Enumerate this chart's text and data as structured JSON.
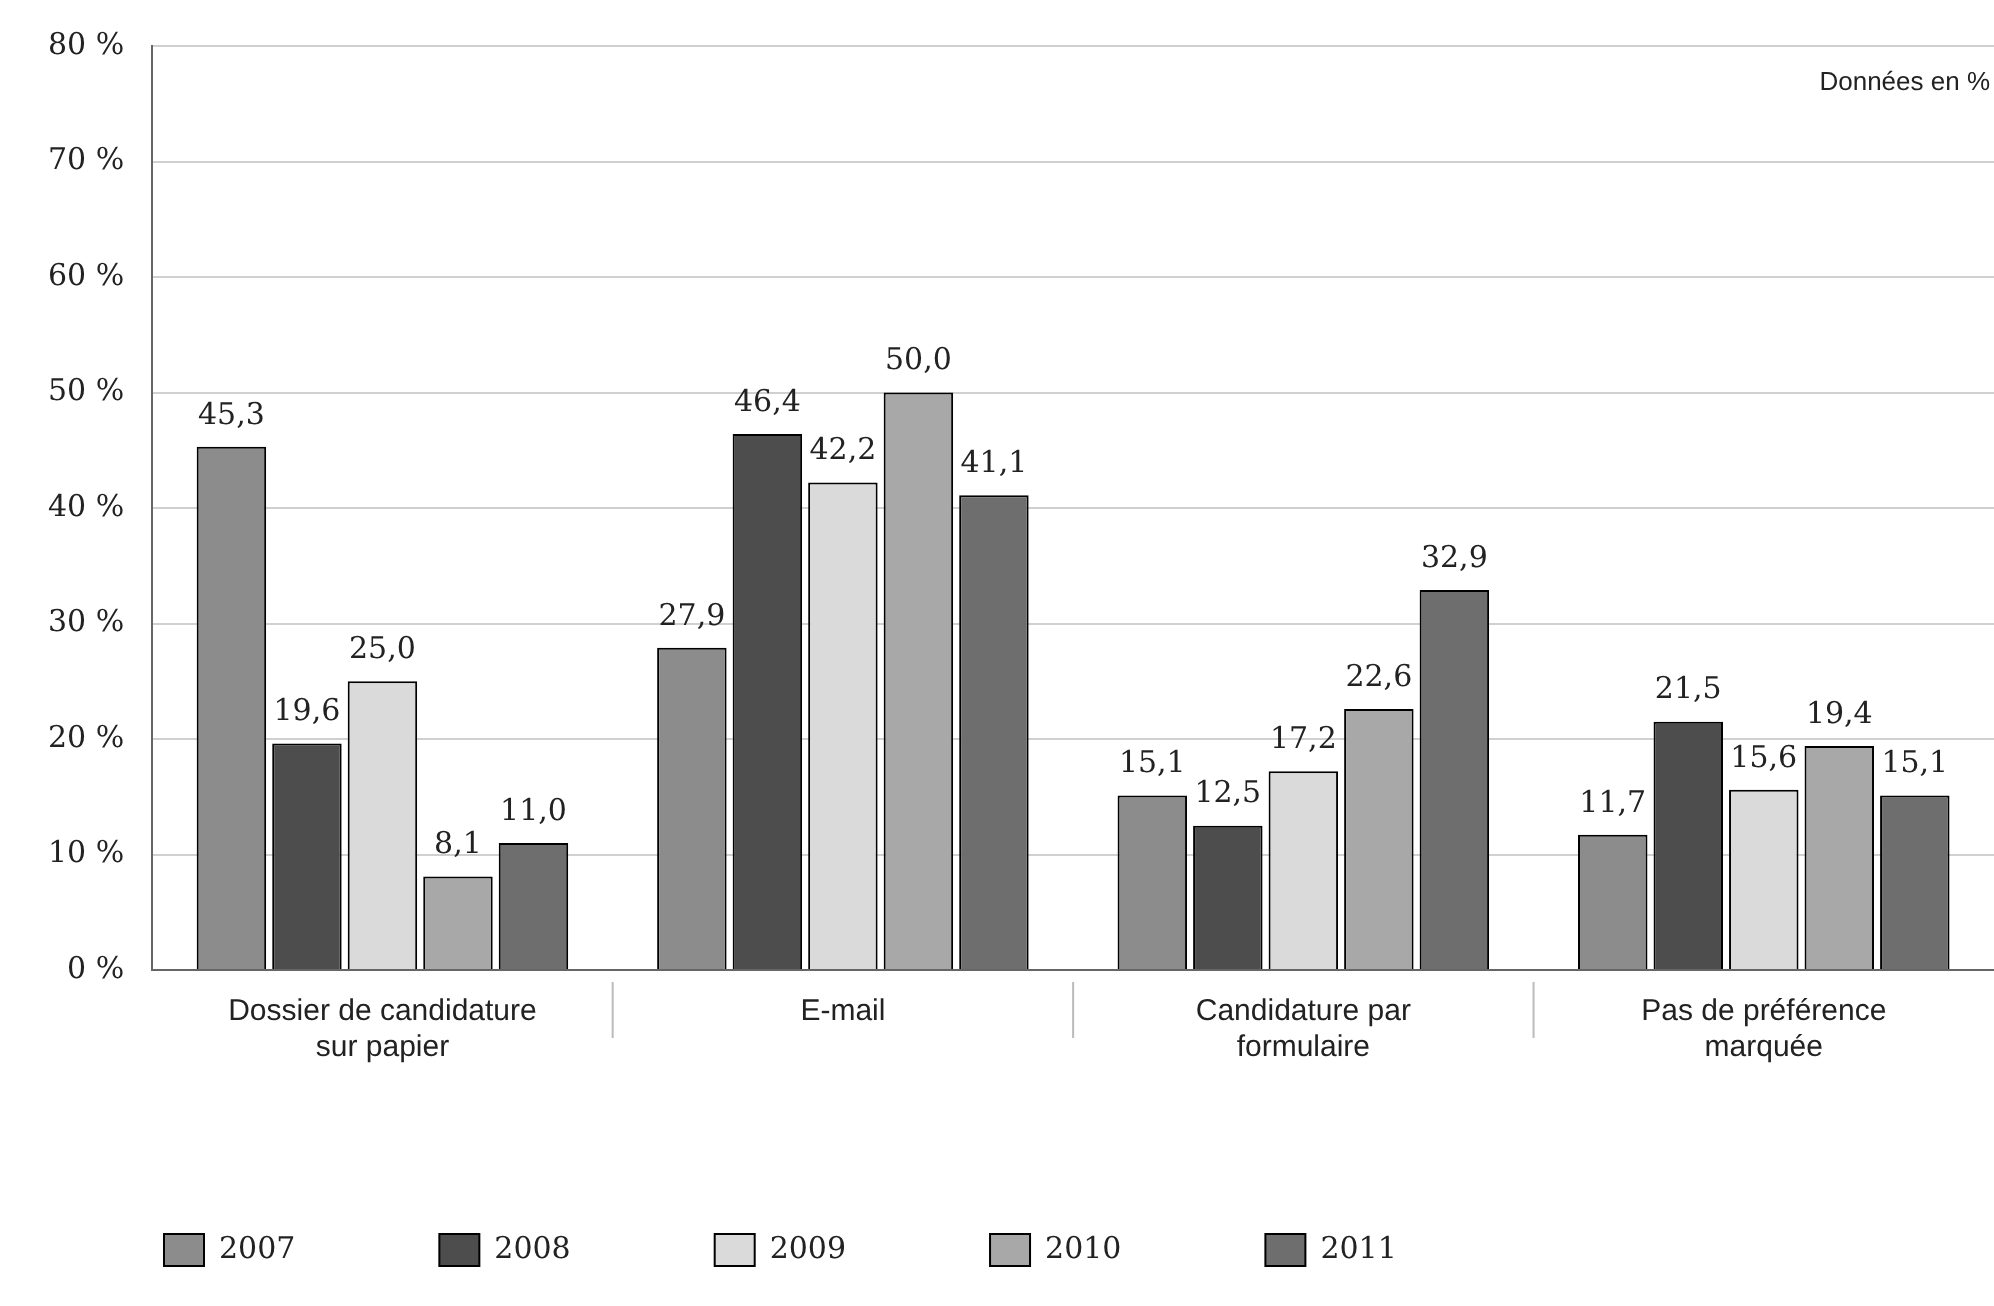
{
  "chart_data": {
    "type": "bar",
    "categories": [
      "Dossier de candidature sur papier",
      "E-mail",
      "Candidature par formulaire",
      "Pas de préférence marquée"
    ],
    "series": [
      {
        "name": "2007",
        "color": "#8c8c8c",
        "values": [
          45.3,
          27.9,
          15.1,
          11.7
        ],
        "value_labels": [
          "45,3",
          "27,9",
          "15,1",
          "11,7"
        ]
      },
      {
        "name": "2008",
        "color": "#4d4d4d",
        "values": [
          19.6,
          46.4,
          12.5,
          21.5
        ],
        "value_labels": [
          "19,6",
          "46,4",
          "12,5",
          "21,5"
        ]
      },
      {
        "name": "2009",
        "color": "#dadada",
        "values": [
          25.0,
          42.2,
          17.2,
          15.6
        ],
        "value_labels": [
          "25,0",
          "42,2",
          "17,2",
          "15,6"
        ]
      },
      {
        "name": "2010",
        "color": "#a8a8a8",
        "values": [
          8.1,
          50.0,
          22.6,
          19.4
        ],
        "value_labels": [
          "8,1",
          "50,0",
          "22,6",
          "19,4"
        ]
      },
      {
        "name": "2011",
        "color": "#6e6e6e",
        "values": [
          11.0,
          41.1,
          32.9,
          15.1
        ],
        "value_labels": [
          "11,0",
          "41,1",
          "32,9",
          "15,1"
        ]
      }
    ],
    "ylim": [
      0,
      80
    ],
    "yticks": [
      {
        "value": 0,
        "label": "0 %"
      },
      {
        "value": 10,
        "label": "10 %"
      },
      {
        "value": 20,
        "label": "20 %"
      },
      {
        "value": 30,
        "label": "30 %"
      },
      {
        "value": 40,
        "label": "40 %"
      },
      {
        "value": 50,
        "label": "50 %"
      },
      {
        "value": 60,
        "label": "60 %"
      },
      {
        "value": 70,
        "label": "70 %"
      },
      {
        "value": 80,
        "label": "80 %"
      }
    ],
    "grid": "y",
    "legend": "bottom",
    "annotations": [
      "Données en %"
    ]
  }
}
